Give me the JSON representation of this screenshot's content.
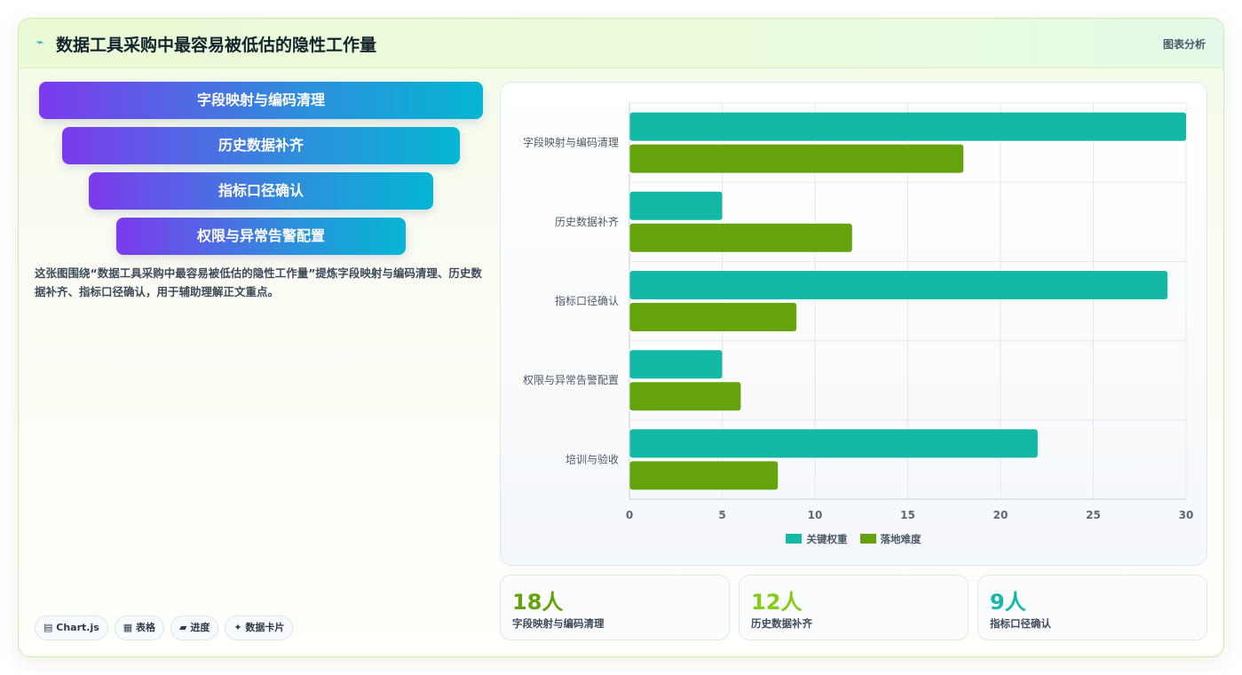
{
  "header": {
    "icon": "⌁",
    "title": "数据工具采购中最容易被低估的隐性工作量",
    "tag": "图表分析"
  },
  "funnel": [
    {
      "label": "字段映射与编码清理"
    },
    {
      "label": "历史数据补齐"
    },
    {
      "label": "指标口径确认"
    },
    {
      "label": "权限与异常告警配置"
    }
  ],
  "description": "这张图围绕“数据工具采购中最容易被低估的隐性工作量”提炼字段映射与编码清理、历史数据补齐、指标口径确认，用于辅助理解正文重点。",
  "chips": [
    {
      "icon": "chart-icon",
      "glyph": "▤",
      "label": "Chart.js"
    },
    {
      "icon": "table-icon",
      "glyph": "▦",
      "label": "表格"
    },
    {
      "icon": "progress-icon",
      "glyph": "▰",
      "label": "进度"
    },
    {
      "icon": "sparkle-icon",
      "glyph": "✦",
      "label": "数据卡片"
    }
  ],
  "chart_data": {
    "type": "bar",
    "orientation": "horizontal",
    "categories": [
      "字段映射与编码清理",
      "历史数据补齐",
      "指标口径确认",
      "权限与异常告警配置",
      "培训与验收"
    ],
    "series": [
      {
        "name": "关键权重",
        "color": "#14b8a6",
        "values": [
          30,
          5,
          29,
          5,
          22
        ]
      },
      {
        "name": "落地难度",
        "color": "#65a30d",
        "values": [
          18,
          12,
          9,
          6,
          8
        ]
      }
    ],
    "xlim": [
      0,
      30
    ],
    "xticks": [
      0,
      5,
      10,
      15,
      20,
      25,
      30
    ],
    "grid": true,
    "legend": "bottom"
  },
  "stats": [
    {
      "value": "18人",
      "label": "字段映射与编码清理",
      "color": "#65a30d"
    },
    {
      "value": "12人",
      "label": "历史数据补齐",
      "color": "#84cc16"
    },
    {
      "value": "9人",
      "label": "指标口径确认",
      "color": "#14b8a6"
    }
  ]
}
